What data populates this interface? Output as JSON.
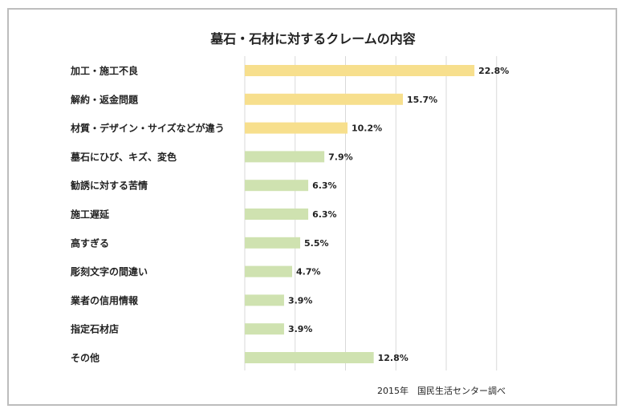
{
  "chart_data": {
    "type": "bar",
    "orientation": "horizontal",
    "title": "墓石・石材に対するクレームの内容",
    "source": "2015年　国民生活センター調べ",
    "categories": [
      "加工・施工不良",
      "解約・返金問題",
      "材質・デザイン・サイズなどが違う",
      "墓石にひび、キズ、変色",
      "勧誘に対する苦情",
      "施工遅延",
      "高すぎる",
      "彫刻文字の間違い",
      "業者の信用情報",
      "指定石材店",
      "その他"
    ],
    "values": [
      22.8,
      15.7,
      10.2,
      7.9,
      6.3,
      6.3,
      5.5,
      4.7,
      3.9,
      3.9,
      12.8
    ],
    "value_labels": [
      "22.8%",
      "15.7%",
      "10.2%",
      "7.9%",
      "6.3%",
      "6.3%",
      "5.5%",
      "4.7%",
      "3.9%",
      "3.9%",
      "12.8%"
    ],
    "bar_colors": [
      "#f7df8d",
      "#f7df8d",
      "#f7df8d",
      "#cfe2b0",
      "#cfe2b0",
      "#cfe2b0",
      "#cfe2b0",
      "#cfe2b0",
      "#cfe2b0",
      "#cfe2b0",
      "#cfe2b0"
    ],
    "xlim": [
      0,
      25
    ],
    "grid": true,
    "legend": "none"
  }
}
